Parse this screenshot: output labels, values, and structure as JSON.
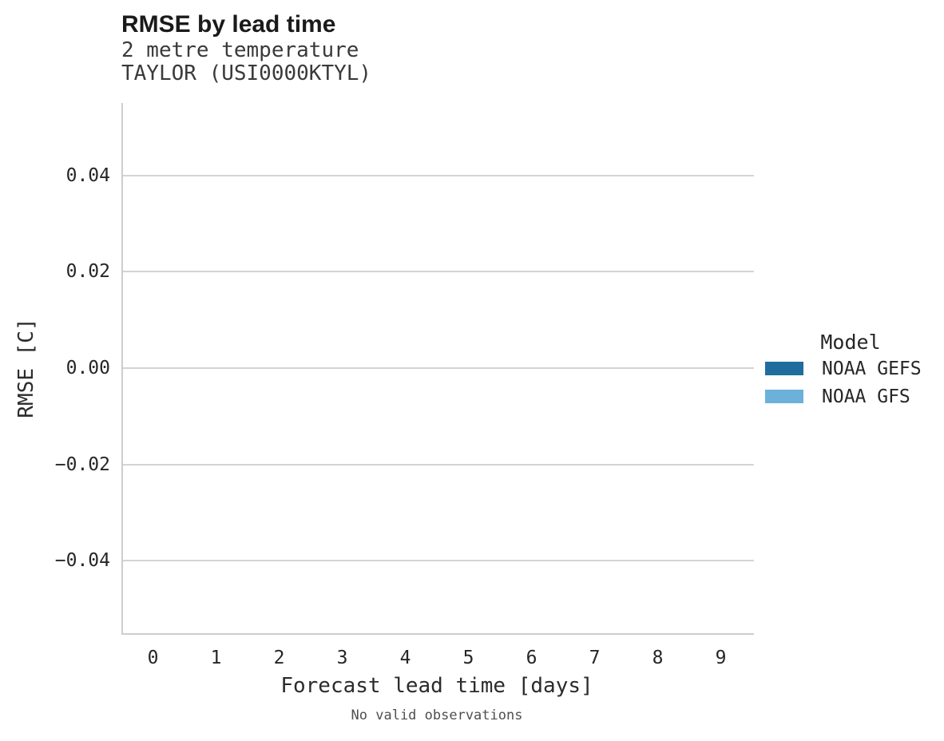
{
  "header": {
    "title": "RMSE by lead time",
    "subtitle_line1": "2 metre temperature",
    "subtitle_line2": "TAYLOR (USI0000KTYL)"
  },
  "chart_data": {
    "type": "line",
    "title": "RMSE by lead time",
    "subtitle": "2 metre temperature",
    "station": "TAYLOR (USI0000KTYL)",
    "xlabel": "Forecast lead time [days]",
    "ylabel": "RMSE [C]",
    "xlim": [
      -0.5,
      9.5
    ],
    "ylim": [
      -0.055,
      0.055
    ],
    "grid": "horizontal-only",
    "spines": [
      "left",
      "bottom"
    ],
    "x_ticks": [
      0,
      1,
      2,
      3,
      4,
      5,
      6,
      7,
      8,
      9
    ],
    "y_ticks": [
      {
        "value": 0.04,
        "label": "0.04"
      },
      {
        "value": 0.02,
        "label": "0.02"
      },
      {
        "value": 0.0,
        "label": "0.00"
      },
      {
        "value": -0.02,
        "label": "−0.02"
      },
      {
        "value": -0.04,
        "label": "−0.04"
      }
    ],
    "legend": {
      "title": "Model",
      "position": "right-center",
      "entries": [
        {
          "label": "NOAA GEFS",
          "color": "#1e6d9d"
        },
        {
          "label": "NOAA GFS",
          "color": "#6bb1da"
        }
      ]
    },
    "series": [
      {
        "name": "NOAA GEFS",
        "color": "#1e6d9d",
        "x": [],
        "y": []
      },
      {
        "name": "NOAA GFS",
        "color": "#6bb1da",
        "x": [],
        "y": []
      }
    ],
    "annotation": "No valid observations",
    "colors": {
      "gridline": "#d4d4d4",
      "spine": "#cdcdcd",
      "text": "#262626"
    }
  }
}
